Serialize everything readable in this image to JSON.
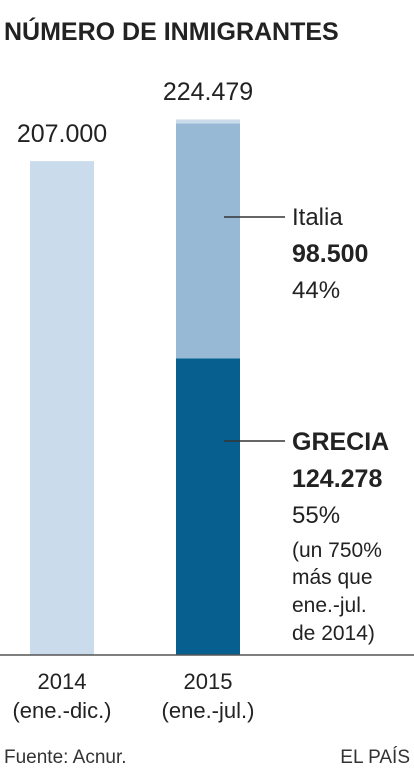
{
  "chart_data": {
    "type": "bar",
    "title": "NÚMERO DE INMIGRANTES",
    "categories": [
      {
        "line1": "2014",
        "line2": "(ene.-dic.)"
      },
      {
        "line1": "2015",
        "line2": "(ene.-jul.)"
      }
    ],
    "bars": [
      {
        "total": 207000,
        "total_label": "207.000",
        "segments": [
          {
            "value": 207000,
            "color": "#cadceb"
          }
        ]
      },
      {
        "total": 224479,
        "total_label": "224.479",
        "segments": [
          {
            "name": "GRECIA",
            "value": 124278,
            "color": "#075f8f"
          },
          {
            "name": "Italia",
            "value": 98500,
            "color": "#97b9d6"
          },
          {
            "value": 1701,
            "color": "#cadceb"
          }
        ]
      }
    ],
    "ylim": [
      0,
      228000
    ],
    "annotations": {
      "italia": {
        "name": "Italia",
        "value": "98.500",
        "percent": "44%"
      },
      "grecia": {
        "name": "GRECIA",
        "value": "124.278",
        "percent": "55%",
        "note": [
          "(un 750%",
          "más que",
          "ene.-jul.",
          "de 2014)"
        ]
      }
    }
  },
  "footer": {
    "source": "Fuente: Acnur.",
    "brand": "EL PAÍS"
  }
}
